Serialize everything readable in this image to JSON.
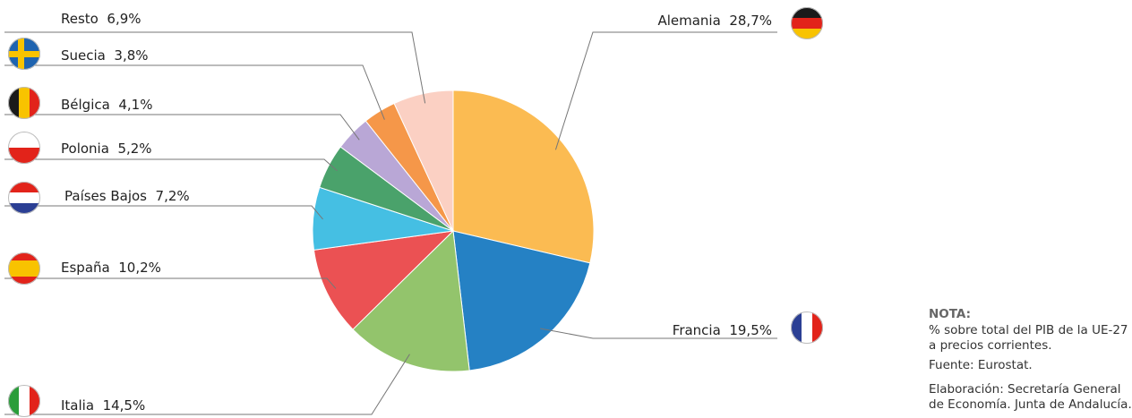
{
  "chart_data": {
    "type": "pie",
    "categories": [
      "Alemania",
      "Francia",
      "Italia",
      "España",
      "Países Bajos",
      "Polonia",
      "Bélgica",
      "Suecia",
      "Resto"
    ],
    "values": [
      28.7,
      19.5,
      14.5,
      10.2,
      7.2,
      5.2,
      4.1,
      3.8,
      6.9
    ],
    "value_labels": [
      "28,7%",
      "19,5%",
      "14,5%",
      "10,2%",
      "7,2%",
      "5,2%",
      "4,1%",
      "3,8%",
      "6,9%"
    ],
    "colors": [
      "#fbbb52",
      "#2581c4",
      "#93c46c",
      "#eb5153",
      "#45bfe3",
      "#4aa26b",
      "#b9a7d6",
      "#f59749",
      "#fbd0c3"
    ]
  },
  "note": {
    "title": "NOTA:",
    "lines": [
      "% sobre total del PIB de la UE-27",
      "a precios corrientes."
    ],
    "source": {
      "label": "Fuente:",
      "text": "Eurostat."
    },
    "credits": {
      "label": "Elaboración:",
      "lines": [
        "Secretaría General",
        "de Economía. Junta de Andalucía."
      ]
    }
  }
}
